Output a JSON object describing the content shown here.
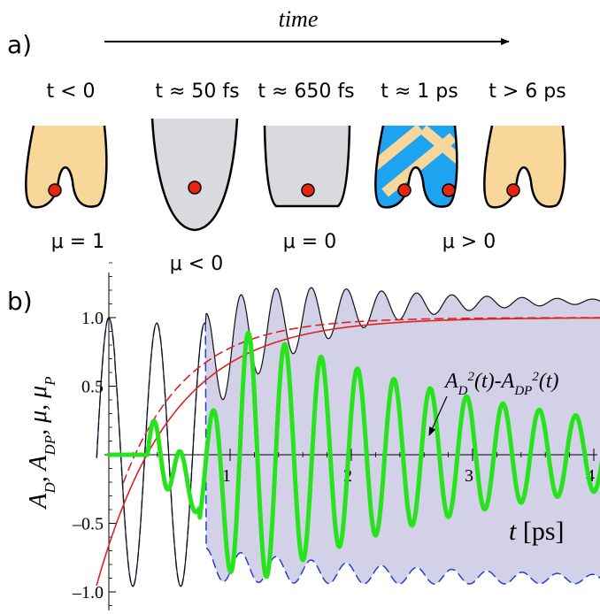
{
  "panel_a": {
    "label": "a)",
    "time_label": "time",
    "stages": [
      {
        "time": "t < 0",
        "mu": "μ = 1"
      },
      {
        "time": "t ≈ 50 fs",
        "mu": "μ < 0"
      },
      {
        "time": "t ≈ 650 fs",
        "mu": "μ = 0"
      },
      {
        "time": "t ≈ 1 ps",
        "mu": ""
      },
      {
        "time": "t > 6 ps",
        "mu": ""
      }
    ],
    "mu_positive": "μ > 0",
    "colors": {
      "orange_fill": "#f9d79a",
      "gray_fill": "#d9dadd",
      "blue_fill": "#1ea3f0",
      "particle": "#e8250c"
    }
  },
  "panel_b": {
    "label": "b)",
    "ylabel_text": "A_D, A_DP, μ, μ_P",
    "xlabel_text": "t [ps]",
    "annotation": "A_D²(t)-A_DP²(t)",
    "y_ticks": [
      "1.0",
      "0.5",
      "–0.5",
      "–1.0"
    ],
    "x_ticks": [
      "1",
      "2",
      "3",
      "4"
    ]
  },
  "chart_data": {
    "type": "line",
    "xlabel": "t [ps]",
    "ylabel": "A_D, A_DP, μ, μ_P",
    "xlim": [
      -0.1,
      4.2
    ],
    "ylim": [
      -1.2,
      1.4
    ],
    "grid": false,
    "x_ticks": [
      1,
      2,
      3,
      4
    ],
    "y_ticks": [
      -1.0,
      -0.5,
      0.5,
      1.0
    ],
    "series": [
      {
        "name": "A_D²(t)-A_DP²(t)",
        "color": "#27e31d",
        "style": "solid-thick",
        "x": [
          0,
          0.3,
          0.45,
          0.55,
          0.75,
          0.85,
          1.1,
          1.2,
          1.4,
          1.6,
          1.9,
          2.2,
          2.4,
          2.7,
          3.0,
          3.3,
          3.5,
          3.8,
          4.0,
          4.1
        ],
        "y": [
          0,
          0,
          0.25,
          -0.2,
          -0.45,
          -0.3,
          0.0,
          0.9,
          -0.95,
          0.72,
          -0.78,
          0.5,
          -0.58,
          0.35,
          -0.42,
          0.2,
          -0.3,
          0.12,
          -0.18,
          -0.1
        ]
      },
      {
        "name": "A_D",
        "color": "#111111",
        "style": "solid-thin",
        "x": [
          -0.1,
          0.08,
          0.28,
          0.65,
          0.8,
          1.05,
          1.4,
          2.0,
          3.0,
          4.2
        ],
        "y": [
          1.0,
          -0.95,
          0.95,
          -0.9,
          -0.95,
          0.0,
          1.0,
          1.0,
          1.0,
          1.0
        ]
      },
      {
        "name": "A_DP",
        "color": "#1f3fd6",
        "style": "dashed",
        "x": [
          -0.1,
          0.08,
          0.28,
          0.65,
          0.8,
          1.05,
          1.4,
          2.0,
          3.0,
          4.2
        ],
        "y": [
          1.0,
          -0.95,
          0.95,
          -0.9,
          -0.97,
          -0.85,
          -0.75,
          -0.8,
          -0.9,
          -0.92
        ]
      },
      {
        "name": "μ",
        "color": "#dd2222",
        "style": "solid",
        "x": [
          -0.1,
          0.5,
          1.0,
          1.5,
          2.0,
          3.0,
          4.2
        ],
        "y": [
          -0.95,
          0.05,
          0.55,
          0.8,
          0.92,
          0.99,
          1.0
        ]
      },
      {
        "name": "μ_P",
        "color": "#dd2222",
        "style": "dashed",
        "x": [
          0.1,
          0.5,
          1.0,
          1.5,
          2.0,
          3.0,
          4.2
        ],
        "y": [
          -0.3,
          0.22,
          0.65,
          0.85,
          0.95,
          0.99,
          1.0
        ]
      }
    ]
  }
}
